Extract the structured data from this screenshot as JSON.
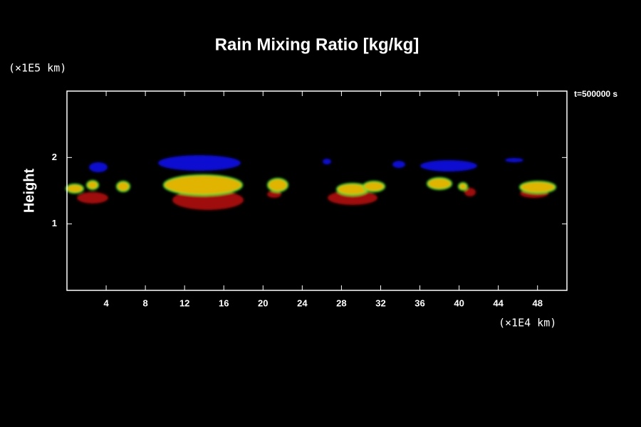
{
  "chart_data": {
    "type": "contour",
    "title": "Rain Mixing Ratio [kg/kg]",
    "y_unit_label": "(×1E5 km)",
    "x_unit_label": "(×1E4 km)",
    "time_label": "t=500000 s",
    "ylabel": "Height",
    "xlim": [
      0,
      51
    ],
    "ylim": [
      0,
      3
    ],
    "xticks": [
      4,
      8,
      12,
      16,
      20,
      24,
      28,
      32,
      36,
      40,
      44,
      48
    ],
    "yticks": [
      1,
      2
    ]
  }
}
